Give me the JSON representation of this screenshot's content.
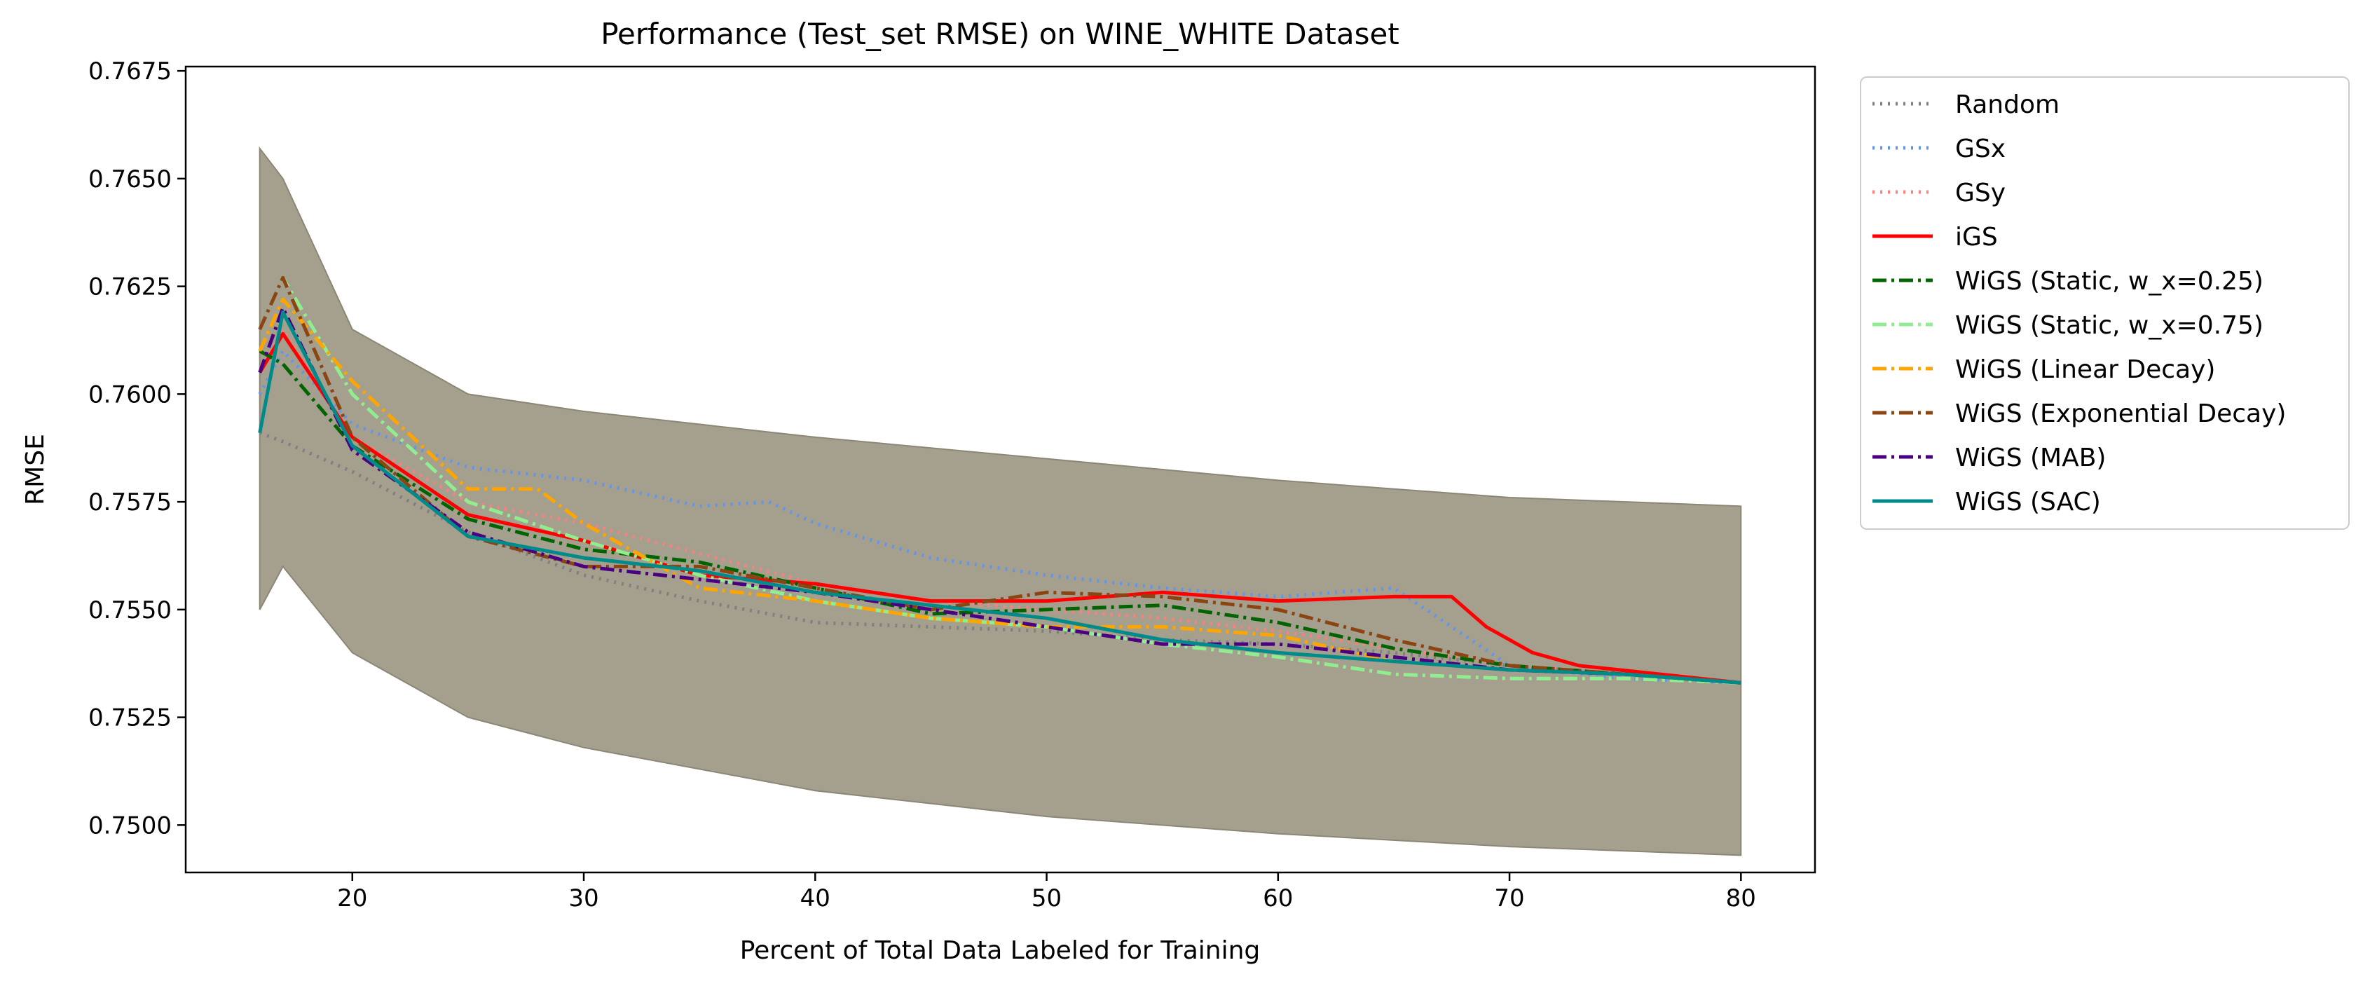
{
  "chart_data": {
    "type": "line",
    "title": "Performance (Test_set RMSE) on WINE_WHITE Dataset",
    "xlabel": "Percent of Total Data Labeled for Training",
    "ylabel": "RMSE",
    "xlim": [
      12.8,
      83.2
    ],
    "ylim": [
      0.7489,
      0.7676
    ],
    "x_ticks": [
      20,
      30,
      40,
      50,
      60,
      70,
      80
    ],
    "x_tick_labels": [
      "20",
      "30",
      "40",
      "50",
      "60",
      "70",
      "80"
    ],
    "y_ticks": [
      0.75,
      0.7525,
      0.755,
      0.7575,
      0.76,
      0.7625,
      0.765,
      0.7675
    ],
    "y_tick_labels": [
      "0.7500",
      "0.7525",
      "0.7550",
      "0.7575",
      "0.7600",
      "0.7625",
      "0.7650",
      "0.7675"
    ],
    "grid": false,
    "legend_position": "outside right, top",
    "shaded_band": {
      "description": "confidence interval bands around each series",
      "x": [
        16,
        17,
        20,
        25,
        30,
        40,
        50,
        60,
        70,
        80
      ],
      "upper": [
        0.7657,
        0.765,
        0.7615,
        0.76,
        0.7596,
        0.759,
        0.7585,
        0.758,
        0.7576,
        0.7574
      ],
      "lower": [
        0.755,
        0.756,
        0.754,
        0.7525,
        0.7518,
        0.7508,
        0.7502,
        0.7498,
        0.7495,
        0.7493
      ]
    },
    "series": [
      {
        "name": "Random",
        "color": "#808080",
        "dash": "dot",
        "x": [
          16,
          17,
          20,
          25,
          30,
          35,
          40,
          45,
          50,
          55,
          60,
          65,
          70,
          75,
          80
        ],
        "y": [
          0.7591,
          0.7589,
          0.7582,
          0.7568,
          0.7558,
          0.7552,
          0.7547,
          0.7546,
          0.7545,
          0.7543,
          0.7542,
          0.754,
          0.7537,
          0.7535,
          0.7533
        ]
      },
      {
        "name": "GSx",
        "color": "#6495ED",
        "dash": "dot",
        "x": [
          16,
          17,
          20,
          25,
          30,
          35,
          38,
          40,
          45,
          50,
          55,
          60,
          65,
          70,
          75,
          80
        ],
        "y": [
          0.76,
          0.761,
          0.7593,
          0.7583,
          0.758,
          0.7574,
          0.7575,
          0.757,
          0.7562,
          0.7558,
          0.7555,
          0.7553,
          0.7555,
          0.7537,
          0.7534,
          0.7533
        ]
      },
      {
        "name": "GSy",
        "color": "#FF7F7F",
        "dash": "dot",
        "x": [
          16,
          17,
          20,
          25,
          30,
          35,
          40,
          45,
          50,
          55,
          60,
          65,
          70,
          75,
          80
        ],
        "y": [
          0.7605,
          0.7615,
          0.759,
          0.7575,
          0.757,
          0.7563,
          0.7556,
          0.7552,
          0.755,
          0.7548,
          0.7545,
          0.7541,
          0.7537,
          0.7535,
          0.7533
        ]
      },
      {
        "name": "iGS",
        "color": "#FF0000",
        "dash": "solid",
        "x": [
          16,
          17,
          20,
          25,
          30,
          35,
          40,
          45,
          50,
          55,
          60,
          65,
          67.5,
          69,
          71,
          73,
          80
        ],
        "y": [
          0.7605,
          0.7614,
          0.759,
          0.7572,
          0.7566,
          0.7558,
          0.7556,
          0.7552,
          0.7552,
          0.7554,
          0.7552,
          0.7553,
          0.7553,
          0.7546,
          0.754,
          0.7537,
          0.7533
        ]
      },
      {
        "name": "WiGS (Static, w_x=0.25)",
        "color": "#006400",
        "dash": "dashdot",
        "x": [
          16,
          17,
          20,
          25,
          30,
          35,
          40,
          45,
          50,
          55,
          60,
          65,
          70,
          75,
          80
        ],
        "y": [
          0.761,
          0.7607,
          0.7588,
          0.7571,
          0.7564,
          0.7561,
          0.7555,
          0.7549,
          0.755,
          0.7551,
          0.7547,
          0.7541,
          0.7537,
          0.7535,
          0.7533
        ]
      },
      {
        "name": "WiGS (Static, w_x=0.75)",
        "color": "#90EE90",
        "dash": "dashdot",
        "x": [
          16,
          17,
          20,
          25,
          30,
          35,
          40,
          45,
          50,
          55,
          60,
          65,
          70,
          75,
          80
        ],
        "y": [
          0.7615,
          0.7627,
          0.76,
          0.7575,
          0.7566,
          0.7558,
          0.7552,
          0.7548,
          0.7546,
          0.7542,
          0.7539,
          0.7535,
          0.7534,
          0.7534,
          0.7533
        ]
      },
      {
        "name": "WiGS (Linear Decay)",
        "color": "#FFA500",
        "dash": "dashdot",
        "x": [
          16,
          17,
          20,
          25,
          28,
          30,
          35,
          40,
          45,
          50,
          55,
          60,
          65,
          70,
          75,
          80
        ],
        "y": [
          0.761,
          0.7622,
          0.7603,
          0.7578,
          0.7578,
          0.757,
          0.7555,
          0.7552,
          0.7548,
          0.7546,
          0.7546,
          0.7544,
          0.7538,
          0.7536,
          0.7535,
          0.7533
        ]
      },
      {
        "name": "WiGS (Exponential Decay)",
        "color": "#8B4513",
        "dash": "dashdot",
        "x": [
          16,
          17,
          20,
          25,
          30,
          35,
          40,
          45,
          50,
          55,
          60,
          65,
          70,
          75,
          80
        ],
        "y": [
          0.7615,
          0.7627,
          0.759,
          0.7567,
          0.756,
          0.756,
          0.7555,
          0.755,
          0.7554,
          0.7553,
          0.755,
          0.7543,
          0.7537,
          0.7535,
          0.7533
        ]
      },
      {
        "name": "WiGS (MAB)",
        "color": "#4B0082",
        "dash": "dashdot",
        "x": [
          16,
          17,
          20,
          25,
          30,
          35,
          40,
          45,
          50,
          55,
          60,
          65,
          70,
          75,
          80
        ],
        "y": [
          0.7605,
          0.762,
          0.7587,
          0.7568,
          0.756,
          0.7557,
          0.7554,
          0.755,
          0.7546,
          0.7542,
          0.7542,
          0.7539,
          0.7536,
          0.7535,
          0.7533
        ]
      },
      {
        "name": "WiGS (SAC)",
        "color": "#008B8B",
        "dash": "solid",
        "x": [
          16,
          17,
          20,
          25,
          30,
          35,
          40,
          45,
          50,
          55,
          60,
          65,
          70,
          75,
          80
        ],
        "y": [
          0.7591,
          0.7619,
          0.7588,
          0.7567,
          0.7562,
          0.7559,
          0.7554,
          0.7551,
          0.7548,
          0.7543,
          0.754,
          0.7538,
          0.7536,
          0.7535,
          0.7533
        ]
      }
    ]
  }
}
